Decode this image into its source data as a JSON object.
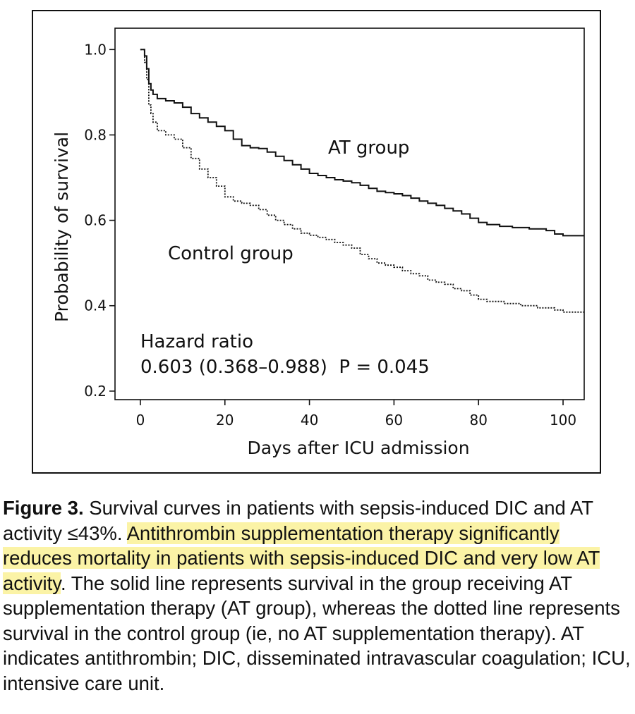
{
  "chart_data": {
    "type": "line",
    "title": "",
    "xlabel": "Days after ICU admission",
    "ylabel": "Probability of survival",
    "xlim": [
      -6,
      105
    ],
    "ylim": [
      0.18,
      1.05
    ],
    "xticks": [
      0,
      20,
      40,
      60,
      80,
      100
    ],
    "yticks": [
      0.2,
      0.4,
      0.6,
      0.8,
      1.0
    ],
    "xtick_labels": [
      "0",
      "20",
      "40",
      "60",
      "80",
      "100"
    ],
    "ytick_labels": [
      "0.2",
      "0.4",
      "0.6",
      "0.8",
      "1.0"
    ],
    "grid": false,
    "series": [
      {
        "name": "AT group",
        "style": "solid",
        "x": [
          0,
          1,
          1.5,
          2,
          2.5,
          3,
          4,
          6,
          8,
          10,
          12,
          14,
          16,
          18,
          20,
          22,
          24,
          26,
          28,
          30,
          32,
          34,
          36,
          38,
          40,
          42,
          44,
          46,
          48,
          50,
          52,
          54,
          56,
          58,
          60,
          62,
          64,
          66,
          68,
          70,
          72,
          74,
          76,
          78,
          80,
          82,
          85,
          88,
          92,
          96,
          98,
          100,
          105
        ],
        "y": [
          1.0,
          0.985,
          0.955,
          0.92,
          0.905,
          0.895,
          0.885,
          0.88,
          0.875,
          0.865,
          0.85,
          0.84,
          0.83,
          0.82,
          0.81,
          0.79,
          0.775,
          0.77,
          0.768,
          0.76,
          0.75,
          0.74,
          0.73,
          0.72,
          0.71,
          0.705,
          0.7,
          0.695,
          0.692,
          0.688,
          0.682,
          0.675,
          0.668,
          0.665,
          0.662,
          0.658,
          0.652,
          0.645,
          0.64,
          0.635,
          0.628,
          0.622,
          0.615,
          0.605,
          0.595,
          0.59,
          0.586,
          0.583,
          0.58,
          0.576,
          0.568,
          0.564,
          0.564
        ]
      },
      {
        "name": "Control group",
        "style": "dotted",
        "x": [
          0,
          1,
          1.5,
          2,
          2.5,
          3,
          4,
          6,
          8,
          10,
          12,
          14,
          16,
          18,
          20,
          22,
          24,
          26,
          28,
          30,
          32,
          34,
          36,
          38,
          40,
          42,
          44,
          46,
          48,
          50,
          52,
          54,
          56,
          58,
          60,
          62,
          64,
          66,
          68,
          70,
          72,
          74,
          76,
          78,
          80,
          82,
          86,
          90,
          94,
          98,
          100,
          105
        ],
        "y": [
          1.0,
          0.97,
          0.93,
          0.87,
          0.85,
          0.83,
          0.81,
          0.8,
          0.79,
          0.77,
          0.745,
          0.72,
          0.7,
          0.68,
          0.655,
          0.645,
          0.64,
          0.635,
          0.625,
          0.612,
          0.6,
          0.59,
          0.58,
          0.57,
          0.565,
          0.56,
          0.555,
          0.548,
          0.542,
          0.535,
          0.52,
          0.51,
          0.5,
          0.495,
          0.49,
          0.482,
          0.475,
          0.47,
          0.46,
          0.455,
          0.45,
          0.44,
          0.435,
          0.425,
          0.415,
          0.41,
          0.405,
          0.4,
          0.395,
          0.39,
          0.385,
          0.385
        ]
      }
    ],
    "annotations": {
      "at_label": "AT group",
      "control_label": "Control group",
      "hazard_title": "Hazard ratio",
      "hazard_value": "0.603 (0.368–0.988)  P = 0.045"
    }
  },
  "caption": {
    "figure_label": "Figure 3.",
    "text_intro": " Survival curves in patients with sepsis-induced DIC and AT activity ≤43%. ",
    "highlighted": "Antithrombin supplementation therapy significantly reduces mortality in patients with sepsis-induced DIC and very low AT activity",
    "text_rest": ". The solid line represents survival in the group receiving AT supplementation therapy (AT group), whereas the dotted line represents survival in the control group (ie, no AT supplementation therapy). AT indicates antithrombin; DIC, disseminated intravascular coagulation; ICU, intensive care unit."
  },
  "colors": {
    "highlight": "#fbf3a6",
    "line": "#111111"
  }
}
